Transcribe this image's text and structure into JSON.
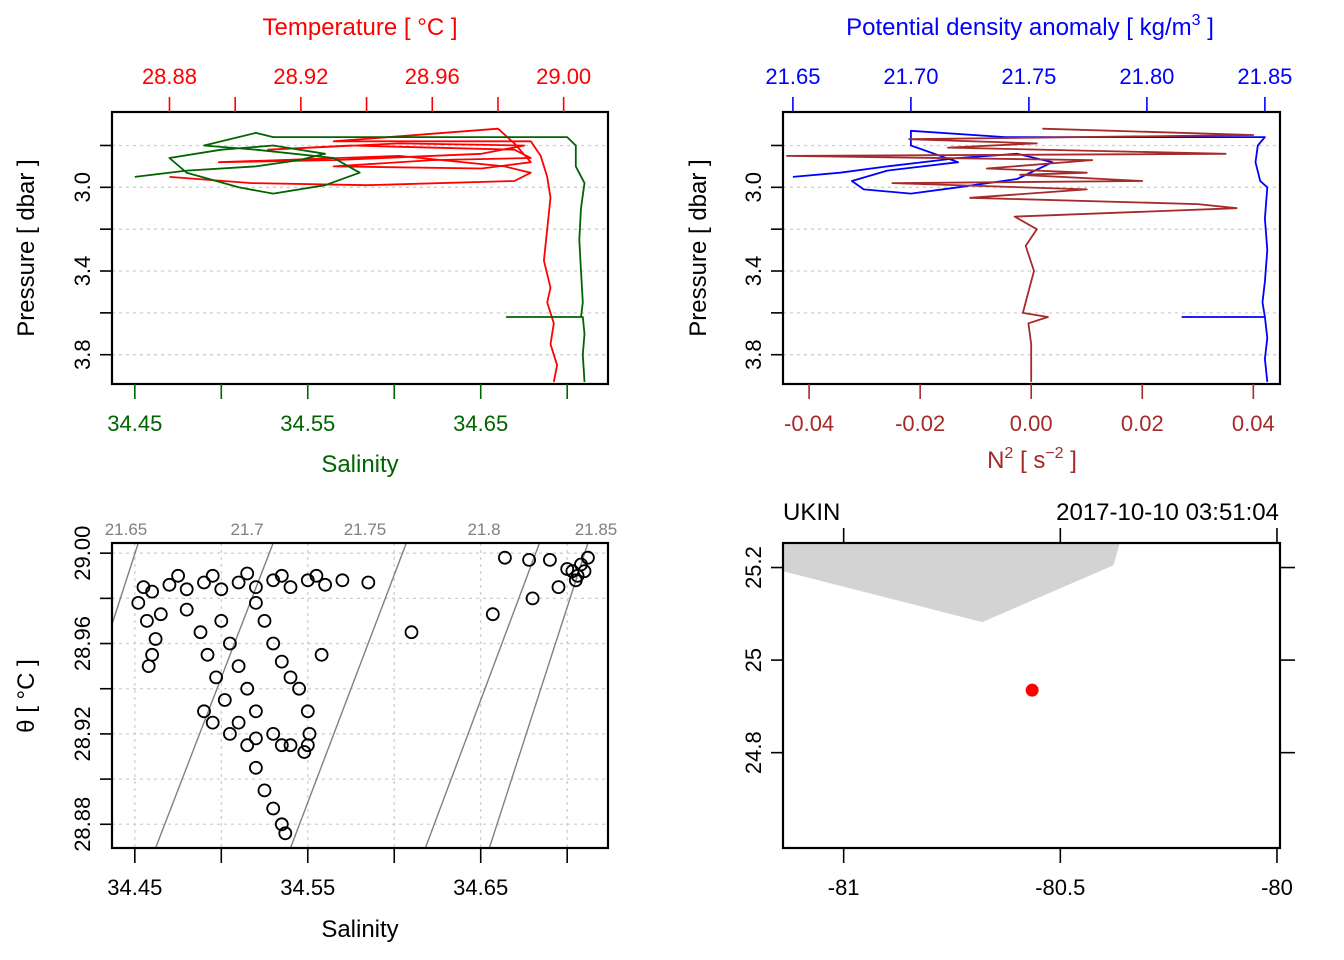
{
  "chart_data": [
    {
      "id": "profile_TS",
      "type": "line",
      "title": "",
      "top_axis": {
        "label": "Temperature [ °C ]",
        "color": "#ff0000",
        "range": [
          28.8625,
          29.0135
        ],
        "ticks": [
          28.88,
          28.9,
          28.92,
          28.94,
          28.96,
          28.98,
          29.0
        ],
        "tick_labels": [
          "28.88",
          "",
          "28.92",
          "",
          "28.96",
          "",
          "29.00"
        ]
      },
      "bottom_axis": {
        "label": "Salinity",
        "color": "#006400",
        "range": [
          34.4368,
          34.7236
        ],
        "ticks": [
          34.45,
          34.5,
          34.55,
          34.6,
          34.65,
          34.7
        ],
        "tick_labels": [
          "34.45",
          "",
          "34.55",
          "",
          "34.65",
          ""
        ]
      },
      "y_axis": {
        "label": "Pressure [ dbar ]",
        "range": [
          3.94,
          2.64
        ],
        "ticks": [
          2.8,
          3.0,
          3.2,
          3.4,
          3.6,
          3.8
        ],
        "tick_labels": [
          "",
          "3.0",
          "",
          "3.4",
          "",
          "3.8"
        ],
        "reversed": true
      },
      "grid": true,
      "series": [
        {
          "name": "Temperature",
          "axis": "top",
          "color": "#ff0000",
          "points": [
            [
              28.88,
              2.95
            ],
            [
              28.905,
              2.98
            ],
            [
              28.94,
              2.99
            ],
            [
              28.985,
              2.97
            ],
            [
              28.99,
              2.93
            ],
            [
              28.982,
              2.9
            ],
            [
              28.95,
              2.85
            ],
            [
              28.895,
              2.88
            ],
            [
              28.93,
              2.87
            ],
            [
              28.975,
              2.84
            ],
            [
              28.988,
              2.8
            ],
            [
              28.95,
              2.79
            ],
            [
              28.91,
              2.82
            ],
            [
              28.935,
              2.8
            ],
            [
              28.985,
              2.82
            ],
            [
              28.99,
              2.86
            ],
            [
              28.96,
              2.87
            ],
            [
              28.93,
              2.9
            ],
            [
              28.975,
              2.91
            ],
            [
              28.99,
              2.88
            ],
            [
              28.985,
              2.79
            ],
            [
              28.98,
              2.72
            ],
            [
              28.93,
              2.78
            ],
            [
              28.99,
              2.78
            ],
            [
              28.993,
              2.85
            ],
            [
              28.995,
              2.95
            ],
            [
              28.996,
              3.05
            ],
            [
              28.995,
              3.2
            ],
            [
              28.994,
              3.35
            ],
            [
              28.996,
              3.48
            ],
            [
              28.995,
              3.55
            ],
            [
              28.997,
              3.65
            ],
            [
              28.996,
              3.75
            ],
            [
              28.998,
              3.85
            ],
            [
              28.997,
              3.93
            ]
          ]
        },
        {
          "name": "Salinity",
          "axis": "bottom",
          "color": "#006400",
          "points": [
            [
              34.45,
              2.95
            ],
            [
              34.48,
              2.92
            ],
            [
              34.52,
              2.9
            ],
            [
              34.545,
              2.87
            ],
            [
              34.56,
              2.84
            ],
            [
              34.53,
              2.8
            ],
            [
              34.5,
              2.82
            ],
            [
              34.47,
              2.86
            ],
            [
              34.48,
              2.93
            ],
            [
              34.51,
              3.0
            ],
            [
              34.53,
              3.03
            ],
            [
              34.56,
              2.99
            ],
            [
              34.58,
              2.93
            ],
            [
              34.565,
              2.86
            ],
            [
              34.52,
              2.82
            ],
            [
              34.49,
              2.8
            ],
            [
              34.52,
              2.74
            ],
            [
              34.53,
              2.76
            ],
            [
              34.7,
              2.76
            ],
            [
              34.705,
              2.8
            ],
            [
              34.705,
              2.9
            ],
            [
              34.71,
              2.98
            ],
            [
              34.708,
              3.1
            ],
            [
              34.707,
              3.25
            ],
            [
              34.708,
              3.4
            ],
            [
              34.709,
              3.55
            ],
            [
              34.708,
              3.62
            ],
            [
              34.665,
              3.62
            ],
            [
              34.709,
              3.62
            ],
            [
              34.71,
              3.7
            ],
            [
              34.709,
              3.8
            ],
            [
              34.71,
              3.93
            ]
          ]
        }
      ]
    },
    {
      "id": "profile_density_N2",
      "type": "line",
      "top_axis": {
        "label": "Potential density anomaly [ kg/m³ ]",
        "label_main": "Potential density anomaly [ kg/m",
        "label_sup": "3",
        "label_end": " ]",
        "color": "#0000ff",
        "range": [
          21.6458,
          21.8564
        ],
        "ticks": [
          21.65,
          21.7,
          21.75,
          21.8,
          21.85
        ],
        "tick_labels": [
          "21.65",
          "21.70",
          "21.75",
          "21.80",
          "21.85"
        ]
      },
      "bottom_axis": {
        "label": "N² [ s⁻² ]",
        "label_main": "N",
        "label_sup": "2",
        "label_mid": " [ s",
        "label_sup2": "−2",
        "label_end": " ]",
        "color": "#a52a2a",
        "range": [
          -0.0447,
          0.0448
        ],
        "ticks": [
          -0.04,
          -0.02,
          0.0,
          0.02,
          0.04
        ],
        "tick_labels": [
          "-0.04",
          "-0.02",
          "0.00",
          "0.02",
          "0.04"
        ]
      },
      "y_axis": {
        "label": "Pressure [ dbar ]",
        "range": [
          3.94,
          2.64
        ],
        "ticks": [
          2.8,
          3.0,
          3.2,
          3.4,
          3.6,
          3.8
        ],
        "tick_labels": [
          "",
          "3.0",
          "",
          "3.4",
          "",
          "3.8"
        ],
        "reversed": true
      },
      "grid": true,
      "series": [
        {
          "name": "Potential density anomaly",
          "axis": "top",
          "color": "#0000ff",
          "points": [
            [
              21.65,
              2.95
            ],
            [
              21.67,
              2.93
            ],
            [
              21.69,
              2.9
            ],
            [
              21.72,
              2.86
            ],
            [
              21.745,
              2.84
            ],
            [
              21.76,
              2.88
            ],
            [
              21.745,
              2.96
            ],
            [
              21.72,
              3.0
            ],
            [
              21.7,
              3.03
            ],
            [
              21.68,
              3.01
            ],
            [
              21.675,
              2.97
            ],
            [
              21.69,
              2.92
            ],
            [
              21.72,
              2.88
            ],
            [
              21.7,
              2.8
            ],
            [
              21.7,
              2.73
            ],
            [
              21.74,
              2.76
            ],
            [
              21.85,
              2.76
            ],
            [
              21.847,
              2.8
            ],
            [
              21.846,
              2.88
            ],
            [
              21.848,
              2.97
            ],
            [
              21.851,
              3.0
            ],
            [
              21.85,
              3.15
            ],
            [
              21.851,
              3.3
            ],
            [
              21.85,
              3.45
            ],
            [
              21.849,
              3.55
            ],
            [
              21.85,
              3.62
            ],
            [
              21.815,
              3.62
            ],
            [
              21.85,
              3.62
            ],
            [
              21.851,
              3.72
            ],
            [
              21.85,
              3.82
            ],
            [
              21.851,
              3.93
            ]
          ]
        },
        {
          "name": "N²",
          "axis": "bottom",
          "color": "#a52a2a",
          "points": [
            [
              0.002,
              2.72
            ],
            [
              0.04,
              2.75
            ],
            [
              -0.022,
              2.77
            ],
            [
              0.001,
              2.79
            ],
            [
              -0.015,
              2.81
            ],
            [
              0.035,
              2.84
            ],
            [
              -0.044,
              2.85
            ],
            [
              0.011,
              2.87
            ],
            [
              -0.008,
              2.91
            ],
            [
              0.01,
              2.93
            ],
            [
              -0.002,
              2.94
            ],
            [
              0.02,
              2.97
            ],
            [
              -0.025,
              2.98
            ],
            [
              0.01,
              3.01
            ],
            [
              -0.011,
              3.05
            ],
            [
              0.03,
              3.08
            ],
            [
              0.037,
              3.1
            ],
            [
              -0.003,
              3.14
            ],
            [
              0.001,
              3.2
            ],
            [
              -0.001,
              3.28
            ],
            [
              0.0005,
              3.4
            ],
            [
              -0.0005,
              3.5
            ],
            [
              -0.0015,
              3.6
            ],
            [
              0.003,
              3.62
            ],
            [
              -0.0005,
              3.65
            ],
            [
              0.0,
              3.75
            ],
            [
              0.0,
              3.93
            ]
          ]
        }
      ]
    },
    {
      "id": "TS_diagram",
      "type": "scatter",
      "xlabel": "Salinity",
      "ylabel": "θ [ °C ]",
      "xlim": [
        34.4368,
        34.7236
      ],
      "ylim": [
        28.8695,
        29.0045
      ],
      "x_ticks": [
        34.45,
        34.5,
        34.55,
        34.6,
        34.65,
        34.7
      ],
      "x_tick_labels": [
        "34.45",
        "",
        "34.55",
        "",
        "34.65",
        ""
      ],
      "y_ticks": [
        28.88,
        28.9,
        28.92,
        28.94,
        28.96,
        28.98,
        29.0
      ],
      "y_tick_labels": [
        "28.88",
        "",
        "28.92",
        "",
        "28.96",
        "",
        "29.00"
      ],
      "grid": true,
      "isopycnals": {
        "color": "#808080",
        "labels": [
          "21.65",
          "21.7",
          "21.75",
          "21.8",
          "21.85"
        ],
        "values": [
          21.65,
          21.7,
          21.75,
          21.8,
          21.85
        ]
      },
      "points": [
        [
          34.455,
          28.985
        ],
        [
          34.47,
          28.986
        ],
        [
          34.49,
          28.987
        ],
        [
          34.51,
          28.987
        ],
        [
          34.53,
          28.988
        ],
        [
          34.55,
          28.988
        ],
        [
          34.57,
          28.988
        ],
        [
          34.585,
          28.987
        ],
        [
          34.46,
          28.983
        ],
        [
          34.48,
          28.984
        ],
        [
          34.5,
          28.984
        ],
        [
          34.52,
          28.985
        ],
        [
          34.54,
          28.985
        ],
        [
          34.56,
          28.986
        ],
        [
          34.475,
          28.99
        ],
        [
          34.495,
          28.99
        ],
        [
          34.515,
          28.991
        ],
        [
          34.535,
          28.99
        ],
        [
          34.555,
          28.99
        ],
        [
          34.452,
          28.978
        ],
        [
          34.457,
          28.97
        ],
        [
          34.462,
          28.962
        ],
        [
          34.46,
          28.955
        ],
        [
          34.458,
          28.95
        ],
        [
          34.465,
          28.973
        ],
        [
          34.48,
          28.975
        ],
        [
          34.488,
          28.965
        ],
        [
          34.492,
          28.955
        ],
        [
          34.497,
          28.945
        ],
        [
          34.502,
          28.935
        ],
        [
          34.51,
          28.925
        ],
        [
          34.515,
          28.915
        ],
        [
          34.52,
          28.905
        ],
        [
          34.525,
          28.895
        ],
        [
          34.53,
          28.887
        ],
        [
          34.535,
          28.88
        ],
        [
          34.537,
          28.876
        ],
        [
          34.5,
          28.97
        ],
        [
          34.505,
          28.96
        ],
        [
          34.51,
          28.95
        ],
        [
          34.515,
          28.94
        ],
        [
          34.52,
          28.93
        ],
        [
          34.53,
          28.92
        ],
        [
          34.54,
          28.915
        ],
        [
          34.55,
          28.915
        ],
        [
          34.52,
          28.978
        ],
        [
          34.525,
          28.97
        ],
        [
          34.53,
          28.96
        ],
        [
          34.535,
          28.952
        ],
        [
          34.54,
          28.945
        ],
        [
          34.545,
          28.94
        ],
        [
          34.55,
          28.93
        ],
        [
          34.551,
          28.92
        ],
        [
          34.548,
          28.912
        ],
        [
          34.49,
          28.93
        ],
        [
          34.495,
          28.925
        ],
        [
          34.505,
          28.92
        ],
        [
          34.52,
          28.918
        ],
        [
          34.535,
          28.915
        ],
        [
          34.558,
          28.955
        ],
        [
          34.61,
          28.965
        ],
        [
          34.657,
          28.973
        ],
        [
          34.664,
          28.998
        ],
        [
          34.678,
          28.997
        ],
        [
          34.69,
          28.997
        ],
        [
          34.68,
          28.98
        ],
        [
          34.695,
          28.985
        ],
        [
          34.705,
          28.988
        ],
        [
          34.7,
          28.993
        ],
        [
          34.708,
          28.995
        ],
        [
          34.712,
          28.998
        ],
        [
          34.71,
          28.992
        ],
        [
          34.706,
          28.99
        ],
        [
          34.703,
          28.992
        ]
      ]
    },
    {
      "id": "station_map",
      "type": "scatter",
      "station_name": "UKIN",
      "timestamp": "2017-10-10 03:51:04",
      "xlim": [
        -81.14,
        -79.993
      ],
      "ylim": [
        24.594,
        25.253
      ],
      "x_ticks": [
        -81,
        -80.5,
        -80
      ],
      "x_tick_labels": [
        "-81",
        "-80.5",
        "-80"
      ],
      "y_ticks": [
        24.8,
        25.0,
        25.2
      ],
      "y_tick_labels": [
        "24.8",
        "25",
        "25.2"
      ],
      "land_color": "#d3d3d3",
      "coastline": [
        [
          -81.14,
          25.253
        ],
        [
          -81.14,
          25.192
        ],
        [
          -80.68,
          25.082
        ],
        [
          -80.377,
          25.205
        ],
        [
          -80.363,
          25.253
        ]
      ],
      "station": {
        "lon": -80.565,
        "lat": 24.935,
        "color": "#ff0000"
      }
    }
  ]
}
